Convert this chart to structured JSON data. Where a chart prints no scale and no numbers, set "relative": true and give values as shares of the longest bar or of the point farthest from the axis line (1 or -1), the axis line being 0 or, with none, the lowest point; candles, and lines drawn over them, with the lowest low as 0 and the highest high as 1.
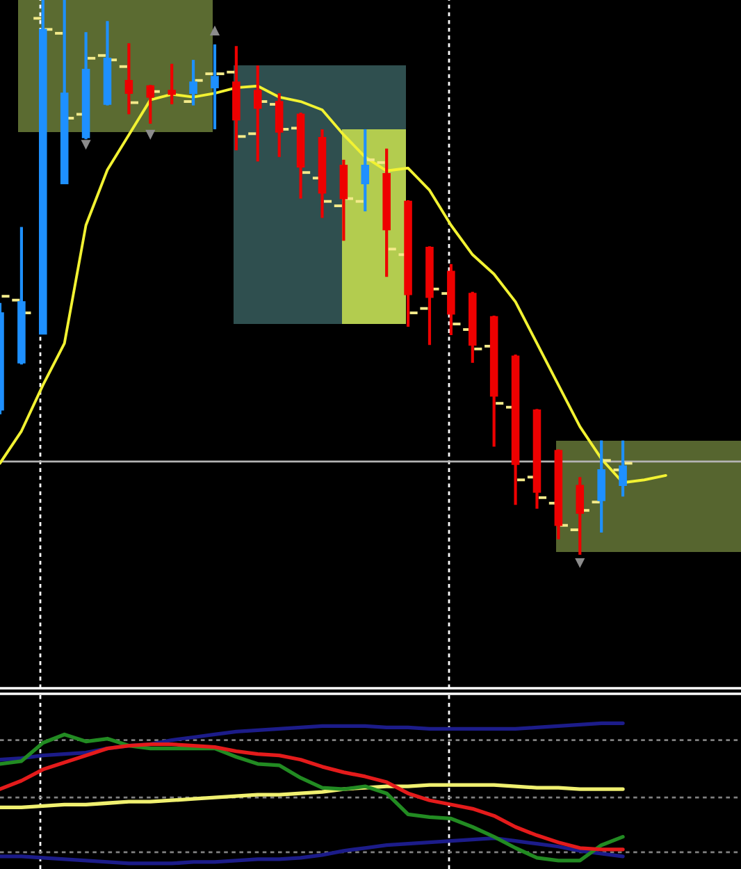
{
  "chart_data": [
    {
      "type": "candlestick",
      "relative": true,
      "categories": [
        null,
        null,
        null,
        null,
        null,
        null,
        null,
        null,
        null,
        null,
        null,
        null,
        null,
        null,
        null,
        null,
        null,
        null,
        null,
        null,
        null,
        null,
        null,
        null,
        null,
        null,
        null,
        null,
        null,
        null,
        null,
        null
      ],
      "ohlc": [
        [
          0.261,
          0.454,
          0.253,
          0.436
        ],
        [
          0.346,
          0.591,
          0.343,
          0.456
        ],
        [
          0.398,
          1.0,
          0.398,
          0.947
        ],
        [
          0.669,
          1.0,
          0.669,
          0.832
        ],
        [
          0.752,
          0.942,
          0.749,
          0.875
        ],
        [
          0.812,
          0.962,
          0.81,
          0.895
        ],
        [
          0.855,
          0.922,
          0.794,
          0.832
        ],
        [
          0.845,
          0.847,
          0.777,
          0.825
        ],
        [
          0.837,
          0.885,
          0.812,
          0.83
        ],
        [
          0.832,
          0.892,
          0.81,
          0.852
        ],
        [
          0.842,
          0.92,
          0.767,
          0.862
        ],
        [
          0.852,
          0.917,
          0.729,
          0.784
        ],
        [
          0.837,
          0.882,
          0.709,
          0.805
        ],
        [
          0.817,
          0.832,
          0.717,
          0.762
        ],
        [
          0.794,
          0.797,
          0.642,
          0.699
        ],
        [
          0.752,
          0.767,
          0.607,
          0.652
        ],
        [
          0.702,
          0.712,
          0.566,
          0.642
        ],
        [
          0.669,
          0.767,
          0.619,
          0.702
        ],
        [
          0.687,
          0.732,
          0.501,
          0.586
        ],
        [
          0.637,
          0.639,
          0.411,
          0.469
        ],
        [
          0.554,
          0.556,
          0.378,
          0.464
        ],
        [
          0.511,
          0.524,
          0.396,
          0.434
        ],
        [
          0.471,
          0.474,
          0.346,
          0.378
        ],
        [
          0.429,
          0.431,
          0.195,
          0.286
        ],
        [
          0.358,
          0.361,
          0.09,
          0.163
        ],
        [
          0.261,
          0.263,
          0.083,
          0.113
        ],
        [
          0.188,
          0.19,
          0.028,
          0.053
        ],
        [
          0.125,
          0.14,
          0.0,
          0.075
        ],
        [
          0.098,
          0.206,
          0.04,
          0.153
        ],
        [
          0.125,
          0.206,
          0.105,
          0.16
        ],
        null,
        null
      ],
      "colors": [
        "#1e90ff",
        "#1e90ff",
        "#1e90ff",
        "#1e90ff",
        "#1e90ff",
        "#1e90ff",
        "#ee0000",
        "#ee0000",
        "#ee0000",
        "#1e90ff",
        "#1e90ff",
        "#ee0000",
        "#ee0000",
        "#ee0000",
        "#ee0000",
        "#ee0000",
        "#ee0000",
        "#1e90ff",
        "#ee0000",
        "#ee0000",
        "#ee0000",
        "#ee0000",
        "#ee0000",
        "#ee0000",
        "#ee0000",
        "#ee0000",
        "#ee0000",
        "#ee0000",
        "#1e90ff",
        "#1e90ff",
        null,
        null
      ],
      "series": [
        {
          "type": "line",
          "color": "#f2f232",
          "values": [
            0.165,
            0.223,
            0.306,
            0.381,
            0.594,
            0.694,
            0.757,
            0.82,
            0.83,
            0.825,
            0.832,
            0.842,
            0.845,
            0.825,
            0.817,
            0.802,
            0.757,
            0.717,
            0.692,
            0.697,
            0.657,
            0.594,
            0.541,
            0.506,
            0.456,
            0.381,
            0.306,
            0.231,
            0.173,
            0.13,
            0.135,
            0.143
          ]
        },
        {
          "type": "scatter",
          "marker": "triangle",
          "color": "#8c8c8c",
          "values": [
            null,
            null,
            null,
            null,
            0.739,
            null,
            null,
            0.757,
            null,
            null,
            0.945,
            null,
            null,
            null,
            null,
            null,
            null,
            null,
            null,
            null,
            null,
            null,
            null,
            null,
            null,
            null,
            null,
            -0.015,
            null,
            null,
            null,
            null
          ]
        },
        {
          "type": "scatter",
          "marker": "square",
          "color": "#f3ea8a",
          "values": [
            null,
            0.459,
            0.967,
            0.94,
            0.794,
            0.9,
            0.88,
            null,
            null,
            0.817,
            0.867,
            0.87,
            0.759,
            0.812,
            0.769,
            0.679,
            0.629,
            0.637,
            0.707,
            0.541,
            0.444,
            0.471,
            0.406,
            0.376,
            0.266,
            0.14,
            0.093,
            0.045,
            0.095,
            0.153,
            null,
            null
          ]
        },
        {
          "type": "scatter",
          "marker": "square",
          "color": "#f3ea8a",
          "values": [
            0.466,
            0.436,
            0.947,
            0.787,
            0.895,
            0.892,
            0.815,
            0.835,
            null,
            0.855,
            0.867,
            0.754,
            0.817,
            0.767,
            0.689,
            0.637,
            0.642,
            0.712,
            0.551,
            0.436,
            0.479,
            0.416,
            0.371,
            0.273,
            0.135,
            0.103,
            0.053,
            0.08,
            0.17,
            0.165,
            null,
            null
          ]
        }
      ],
      "ref_lines": [
        {
          "axis": "y",
          "value": 0.168,
          "color": "#b4b4b4",
          "line_style": "solid"
        }
      ]
    },
    {
      "type": "line",
      "relative": true,
      "categories": [
        null,
        null,
        null,
        null,
        null,
        null,
        null,
        null,
        null,
        null,
        null,
        null,
        null,
        null,
        null,
        null,
        null,
        null,
        null,
        null,
        null,
        null,
        null,
        null,
        null,
        null,
        null,
        null,
        null,
        null,
        null,
        null
      ],
      "series": [
        {
          "color": "#1c1c8a",
          "values": [
            0.74,
            0.75,
            0.77,
            0.78,
            0.79,
            0.82,
            0.84,
            0.85,
            0.88,
            0.9,
            0.92,
            0.94,
            0.95,
            0.96,
            0.97,
            0.98,
            0.98,
            0.98,
            0.97,
            0.97,
            0.96,
            0.96,
            0.96,
            0.96,
            0.96,
            0.97,
            0.98,
            0.99,
            1.0,
            1.0,
            null,
            null
          ]
        },
        {
          "color": "#1c1c8a",
          "values": [
            0.05,
            0.05,
            0.04,
            0.03,
            0.02,
            0.01,
            0.0,
            0.0,
            0.0,
            0.01,
            0.01,
            0.02,
            0.03,
            0.03,
            0.04,
            0.06,
            0.09,
            0.11,
            0.13,
            0.14,
            0.15,
            0.16,
            0.17,
            0.18,
            0.16,
            0.14,
            0.12,
            0.09,
            0.07,
            0.05,
            null,
            null
          ]
        },
        {
          "color": "#f0f070",
          "values": [
            0.4,
            0.4,
            0.41,
            0.42,
            0.42,
            0.43,
            0.44,
            0.44,
            0.45,
            0.46,
            0.47,
            0.48,
            0.49,
            0.49,
            0.5,
            0.51,
            0.53,
            0.54,
            0.55,
            0.55,
            0.56,
            0.56,
            0.56,
            0.56,
            0.55,
            0.54,
            0.54,
            0.53,
            0.53,
            0.53,
            null,
            null
          ]
        },
        {
          "color": "#228b22",
          "values": [
            0.71,
            0.73,
            0.86,
            0.92,
            0.87,
            0.89,
            0.84,
            0.82,
            0.82,
            0.82,
            0.82,
            0.76,
            0.71,
            0.7,
            0.61,
            0.54,
            0.53,
            0.55,
            0.5,
            0.35,
            0.33,
            0.32,
            0.26,
            0.19,
            0.11,
            0.04,
            0.02,
            0.02,
            0.13,
            0.19,
            null,
            null
          ]
        },
        {
          "color": "#e41b1b",
          "values": [
            0.53,
            0.59,
            0.67,
            0.72,
            0.77,
            0.82,
            0.84,
            0.85,
            0.85,
            0.84,
            0.83,
            0.8,
            0.78,
            0.77,
            0.74,
            0.69,
            0.65,
            0.62,
            0.58,
            0.5,
            0.45,
            0.42,
            0.39,
            0.34,
            0.26,
            0.2,
            0.15,
            0.11,
            0.1,
            0.1,
            null,
            null
          ]
        }
      ],
      "ref_lines": [
        {
          "axis": "y",
          "value": 0.88,
          "color": "#808080",
          "line_style": "dotted"
        },
        {
          "axis": "y",
          "value": 0.47,
          "color": "#808080",
          "line_style": "dotted"
        },
        {
          "axis": "y",
          "value": 0.08,
          "color": "#808080",
          "line_style": "dotted"
        }
      ]
    }
  ]
}
